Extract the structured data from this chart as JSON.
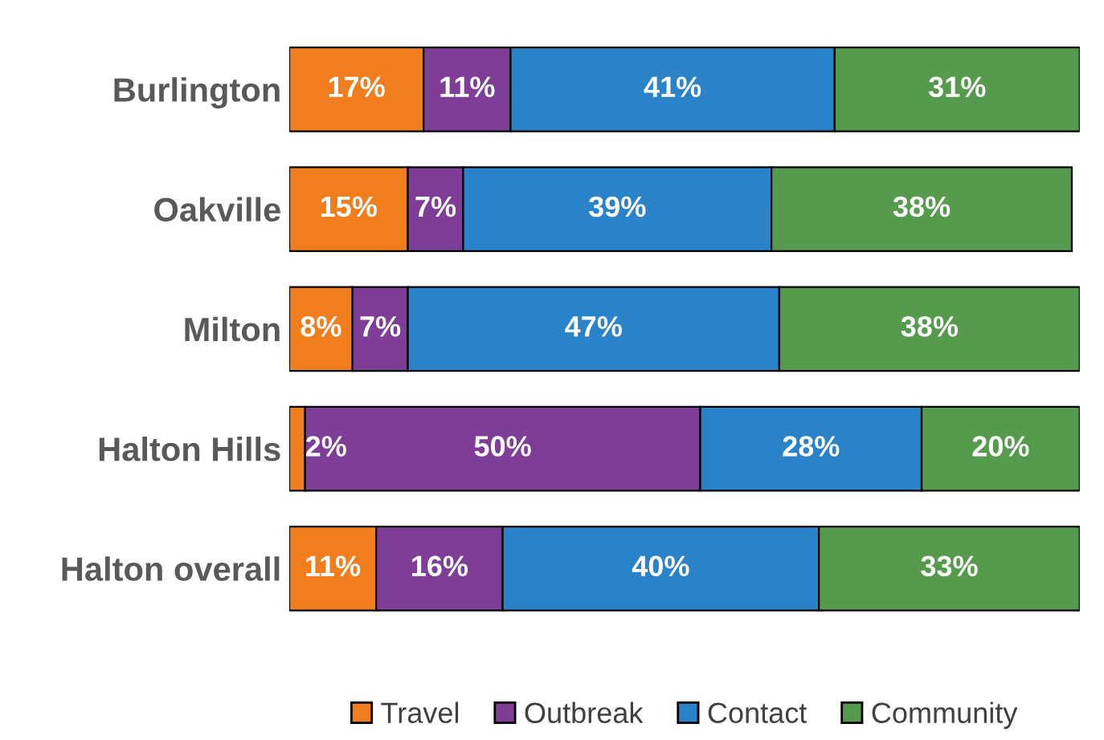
{
  "chart_data": {
    "type": "bar",
    "orientation": "horizontal",
    "stacked": true,
    "categories": [
      "Burlington",
      "Oakville",
      "Milton",
      "Halton Hills",
      "Halton overall"
    ],
    "series": [
      {
        "name": "Travel",
        "color": "#f07e1e",
        "values": [
          17,
          15,
          8,
          2,
          11
        ],
        "value_labels": [
          "17%",
          "15%",
          "8%",
          "2%",
          "11%"
        ]
      },
      {
        "name": "Outbreak",
        "color": "#7e3d97",
        "values": [
          11,
          7,
          7,
          50,
          16
        ],
        "value_labels": [
          "11%",
          "7%",
          "7%",
          "50%",
          "16%"
        ]
      },
      {
        "name": "Contact",
        "color": "#2a83c9",
        "values": [
          41,
          39,
          47,
          28,
          40
        ],
        "value_labels": [
          "41%",
          "39%",
          "47%",
          "28%",
          "40%"
        ]
      },
      {
        "name": "Community",
        "color": "#569b4d",
        "values": [
          31,
          38,
          38,
          20,
          33
        ],
        "value_labels": [
          "31%",
          "38%",
          "38%",
          "20%",
          "33%"
        ]
      }
    ],
    "tick_labels": "y",
    "legend": "bottom",
    "grid": false
  }
}
